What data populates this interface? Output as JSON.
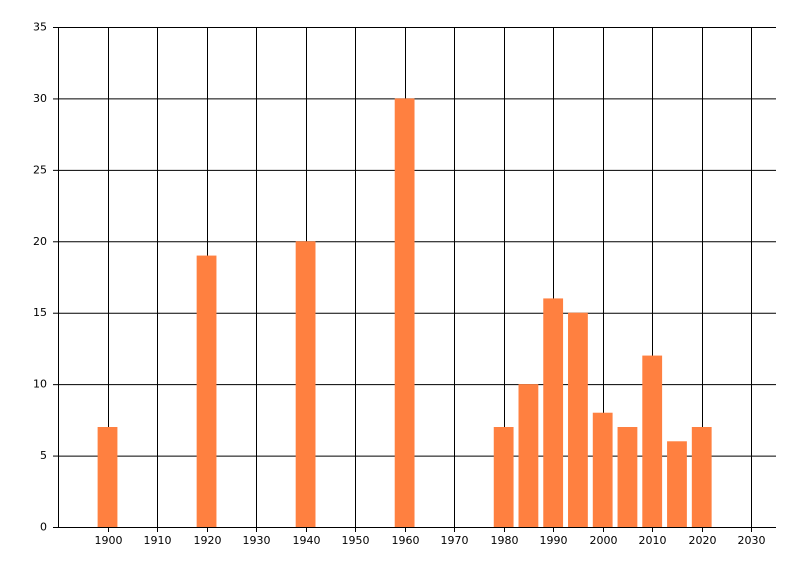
{
  "chart_data": {
    "type": "bar",
    "x": [
      1900,
      1920,
      1940,
      1960,
      1980,
      1985,
      1990,
      1995,
      2000,
      2005,
      2010,
      2015,
      2020
    ],
    "values": [
      7,
      19,
      20,
      30,
      7,
      10,
      16,
      15,
      8,
      7,
      12,
      6,
      7
    ],
    "color": "#ff8040",
    "xlim": [
      1890,
      2035
    ],
    "xticks": [
      1900,
      1910,
      1920,
      1930,
      1940,
      1950,
      1960,
      1970,
      1980,
      1990,
      2000,
      2010,
      2020,
      2030
    ],
    "ylim": [
      0,
      35
    ],
    "yticks": [
      0,
      5,
      10,
      15,
      20,
      25,
      30,
      35
    ],
    "grid": true
  }
}
